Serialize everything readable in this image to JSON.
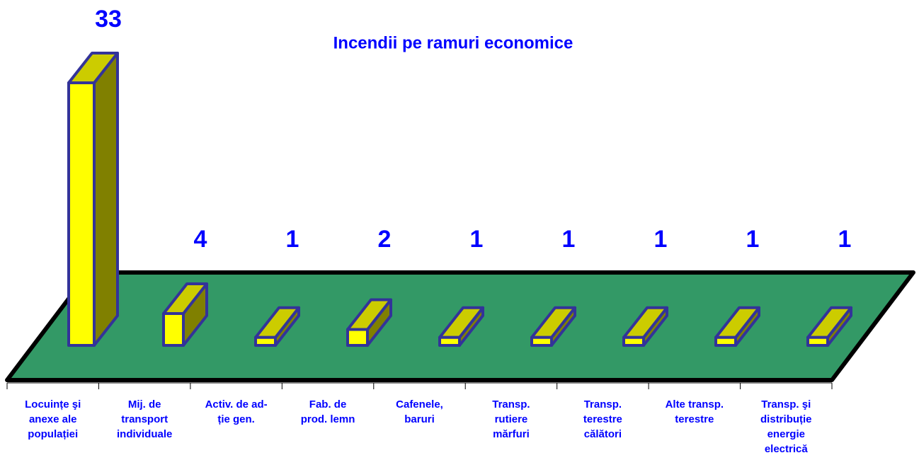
{
  "chart_data": {
    "type": "bar3d",
    "title": "Incendii pe ramuri economice",
    "categories": [
      [
        "Locuințe şi",
        "anexe ale",
        "populației"
      ],
      [
        "Mij. de",
        "transport",
        "individuale"
      ],
      [
        "Activ. de ad-",
        "ție gen."
      ],
      [
        "Fab. de",
        "prod. lemn"
      ],
      [
        "Cafenele,",
        "baruri"
      ],
      [
        "Transp.",
        "rutiere",
        "mărfuri"
      ],
      [
        "Transp.",
        "terestre",
        "călători"
      ],
      [
        "Alte transp.",
        "terestre"
      ],
      [
        "Transp. şi",
        "distribuție",
        "energie",
        "electrică"
      ]
    ],
    "values": [
      33,
      4,
      1,
      2,
      1,
      1,
      1,
      1,
      1
    ],
    "colors": {
      "front": "#ffff00",
      "top": "#cccc00",
      "side": "#808000",
      "edge": "#333399",
      "floor": "#339966",
      "text": "#0000ff"
    }
  }
}
